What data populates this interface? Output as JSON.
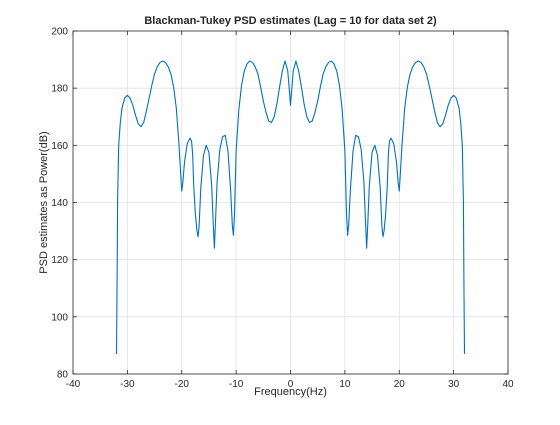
{
  "chart_data": {
    "type": "line",
    "title": "Blackman-Tukey PSD estimates (Lag = 10 for data set 2)",
    "xlabel": "Frequency(Hz)",
    "ylabel": "PSD estimates as Power(dB)",
    "xlim": [
      -40,
      40
    ],
    "ylim": [
      80,
      200
    ],
    "xticks": [
      -40,
      -30,
      -20,
      -10,
      0,
      10,
      20,
      30,
      40
    ],
    "yticks": [
      80,
      100,
      120,
      140,
      160,
      180,
      200
    ],
    "xtick_labels": [
      "-40",
      "-30",
      "-20",
      "-10",
      "0",
      "10",
      "20",
      "30",
      "40"
    ],
    "ytick_labels": [
      "80",
      "100",
      "120",
      "140",
      "160",
      "180",
      "200"
    ],
    "grid": true,
    "line_color": "#0072BD",
    "series": [
      {
        "x": [
          -32,
          -31.9,
          -31.8,
          -31.6,
          -31.3,
          -31,
          -30.5,
          -30,
          -29.5,
          -29,
          -28.5,
          -28,
          -27.5,
          -27,
          -26.5,
          -26,
          -25.5,
          -25,
          -24.5,
          -24,
          -23.5,
          -23,
          -22.5,
          -22,
          -21.5,
          -21,
          -20.5,
          -20.2,
          -20,
          -19.8,
          -19.5,
          -19,
          -18.5,
          -18.2,
          -18,
          -17.8,
          -17.5,
          -17.2,
          -17,
          -16.8,
          -16.5,
          -16,
          -15.5,
          -15,
          -14.5,
          -14.2,
          -14,
          -13.8,
          -13.5,
          -13,
          -12.5,
          -12,
          -11.5,
          -11,
          -10.7,
          -10.5,
          -10.3,
          -10,
          -9.5,
          -9,
          -8.5,
          -8,
          -7.5,
          -7,
          -6.5,
          -6,
          -5.5,
          -5,
          -4.5,
          -4,
          -3.5,
          -3,
          -2.5,
          -2,
          -1.5,
          -1,
          -0.5,
          0,
          0.5,
          1,
          1.5,
          2,
          2.5,
          3,
          3.5,
          4,
          4.5,
          5,
          5.5,
          6,
          6.5,
          7,
          7.5,
          8,
          8.5,
          9,
          9.5,
          10,
          10.3,
          10.5,
          10.7,
          11,
          11.5,
          12,
          12.5,
          13,
          13.5,
          13.8,
          14,
          14.2,
          14.5,
          15,
          15.5,
          16,
          16.5,
          16.8,
          17,
          17.2,
          17.5,
          17.8,
          18,
          18.2,
          18.5,
          19,
          19.5,
          19.8,
          20,
          20.2,
          20.5,
          21,
          21.5,
          22,
          22.5,
          23,
          23.5,
          24,
          24.5,
          25,
          25.5,
          26,
          26.5,
          27,
          27.5,
          28,
          28.5,
          29,
          29.5,
          30,
          30.5,
          31,
          31.3,
          31.6,
          31.8,
          31.9,
          32
        ],
        "y": [
          87,
          110,
          140,
          160,
          168,
          173,
          176.5,
          177.5,
          176.5,
          174,
          170.5,
          167.5,
          166.5,
          168,
          172,
          176.5,
          181,
          185,
          187.5,
          189,
          189.5,
          189,
          187.5,
          185,
          180.5,
          173,
          160,
          150,
          144,
          147,
          154,
          160.5,
          162.5,
          161.5,
          157,
          146,
          136,
          130,
          128,
          132,
          145,
          156.5,
          160,
          157.5,
          146,
          132,
          124,
          133,
          147,
          158.5,
          163,
          163.5,
          158,
          144,
          132,
          128.5,
          136,
          158,
          172.5,
          181,
          186,
          188.5,
          189.5,
          189,
          187.5,
          185,
          180.5,
          175.5,
          171.5,
          168.5,
          168,
          170,
          174.5,
          180.5,
          186,
          189.5,
          186,
          174,
          186,
          189.5,
          186,
          180.5,
          174.5,
          170,
          168,
          168.5,
          171.5,
          175.5,
          180.5,
          185,
          187.5,
          189,
          189.5,
          188.5,
          186,
          181,
          172.5,
          158,
          136,
          128.5,
          132,
          144,
          158,
          163.5,
          163,
          158.5,
          147,
          133,
          124,
          132,
          146,
          157.5,
          160,
          156.5,
          145,
          132,
          128,
          130,
          136,
          146,
          157,
          161.5,
          162.5,
          160.5,
          154,
          147,
          144,
          150,
          160,
          173,
          180.5,
          185,
          187.5,
          189,
          189.5,
          189,
          187.5,
          185,
          181,
          176.5,
          172,
          168,
          166.5,
          167.5,
          170.5,
          174,
          176.5,
          177.5,
          176.5,
          173,
          168,
          160,
          140,
          110,
          87
        ]
      }
    ]
  }
}
